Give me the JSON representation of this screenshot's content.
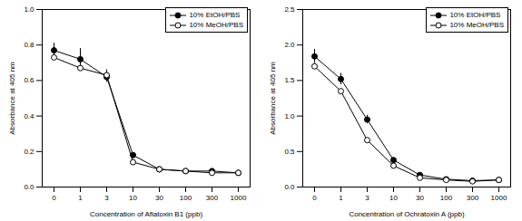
{
  "chart_data": [
    {
      "type": "line",
      "x_label": "Concentration of Aflatoxin B1 (ppb)",
      "y_label": "Absorbance at 405 nm",
      "categories": [
        "0",
        "1",
        "3",
        "10",
        "30",
        "100",
        "300",
        "1000"
      ],
      "ylim": [
        0,
        1.0
      ],
      "yticks": [
        {
          "value": 0,
          "label": "0.0"
        },
        {
          "value": 0.2,
          "label": "0.2"
        },
        {
          "value": 0.4,
          "label": "0.4"
        },
        {
          "value": 0.6,
          "label": "0.6"
        },
        {
          "value": 0.8,
          "label": "0.8"
        },
        {
          "value": 1.0,
          "label": "1.0"
        }
      ],
      "legend": "top-right",
      "series": [
        {
          "name": "10% EtOH/PBS",
          "color": "#000000",
          "marker": "circle",
          "values": [
            0.77,
            0.72,
            0.62,
            0.18,
            0.1,
            0.09,
            0.09,
            0.08
          ],
          "errors": [
            0.04,
            0.06,
            0.03,
            0.01,
            0.005,
            0.005,
            0.005,
            0.005
          ]
        },
        {
          "name": "10% MeOH/PBS",
          "color": "#000000",
          "marker": "open circle",
          "values": [
            0.73,
            0.67,
            0.63,
            0.14,
            0.1,
            0.09,
            0.08,
            0.08
          ],
          "errors": [
            0.01,
            0.01,
            0.03,
            0.01,
            0.005,
            0.005,
            0.005,
            0.005
          ]
        }
      ]
    },
    {
      "type": "line",
      "x_label": "Concentration of Ochratoxin A (ppb)",
      "y_label": "Absorbance at 405 nm",
      "categories": [
        "0",
        "1",
        "3",
        "10",
        "30",
        "100",
        "300",
        "1000"
      ],
      "ylim": [
        0,
        2.5
      ],
      "yticks": [
        {
          "value": 0,
          "label": "0.0"
        },
        {
          "value": 0.5,
          "label": "0.5"
        },
        {
          "value": 1.0,
          "label": "1.0"
        },
        {
          "value": 1.5,
          "label": "1.5"
        },
        {
          "value": 2.0,
          "label": "2.0"
        },
        {
          "value": 2.5,
          "label": "2.5"
        }
      ],
      "legend": "top-right",
      "series": [
        {
          "name": "10% EtOH/PBS",
          "color": "#000000",
          "marker": "circle",
          "values": [
            1.84,
            1.52,
            0.95,
            0.38,
            0.17,
            0.11,
            0.09,
            0.1
          ],
          "errors": [
            0.1,
            0.08,
            0.06,
            0.03,
            0.01,
            0.01,
            0.01,
            0.01
          ]
        },
        {
          "name": "10% MeOH/PBS",
          "color": "#000000",
          "marker": "open circle",
          "values": [
            1.7,
            1.35,
            0.66,
            0.3,
            0.13,
            0.1,
            0.08,
            0.1
          ],
          "errors": [
            0.03,
            0.02,
            0.02,
            0.02,
            0.01,
            0.01,
            0.01,
            0.01
          ]
        }
      ]
    }
  ]
}
